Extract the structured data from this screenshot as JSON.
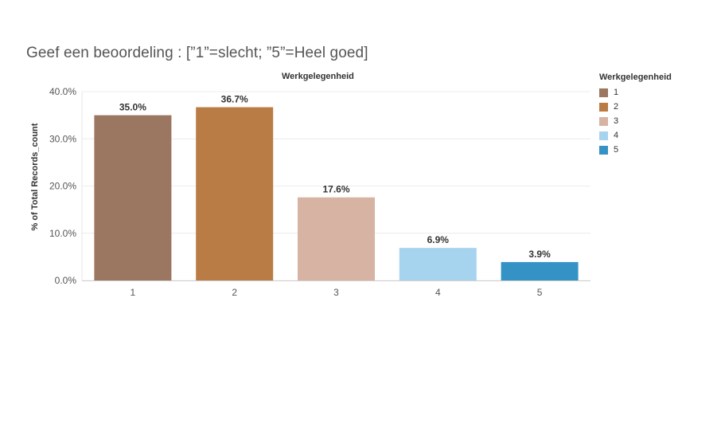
{
  "page_title": "Geef een beoordeling : [”1”=slecht;  ”5”=Heel goed]",
  "chart_data": {
    "type": "bar",
    "title": "Werkgelegenheid",
    "xlabel": "",
    "ylabel": "% of Total Records_count",
    "categories": [
      "1",
      "2",
      "3",
      "4",
      "5"
    ],
    "values": [
      35.0,
      36.7,
      17.6,
      6.9,
      3.9
    ],
    "value_labels": [
      "35.0%",
      "36.7%",
      "17.6%",
      "6.9%",
      "3.9%"
    ],
    "colors": [
      "#9b7660",
      "#b97c45",
      "#d6b3a3",
      "#a6d4ee",
      "#3493c4"
    ],
    "yticks": [
      0,
      10,
      20,
      30,
      40
    ],
    "ytick_labels": [
      "0.0%",
      "10.0%",
      "20.0%",
      "30.0%",
      "40.0%"
    ],
    "ylim": [
      0,
      40
    ],
    "grid": true,
    "legend": {
      "title": "Werkgelegenheid",
      "placement": "right",
      "items": [
        "1",
        "2",
        "3",
        "4",
        "5"
      ]
    }
  }
}
